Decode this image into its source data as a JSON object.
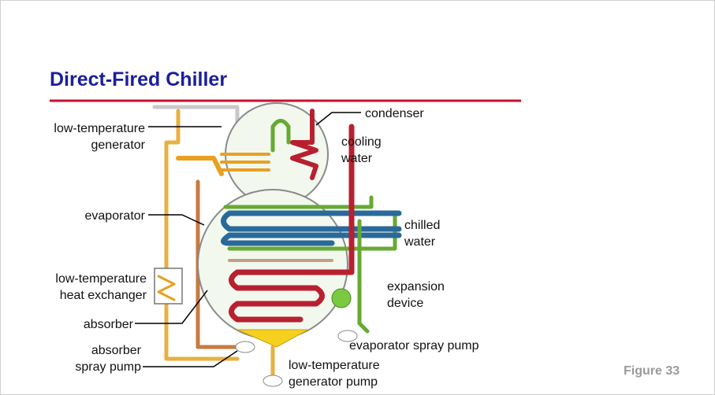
{
  "slide": {
    "title": "Direct-Fired Chiller",
    "figure": "Figure 33",
    "labels": [
      {
        "lines": [
          "low-temperature",
          "generator"
        ]
      },
      {
        "lines": [
          "condenser"
        ]
      },
      {
        "lines": [
          "cooling",
          "water"
        ]
      },
      {
        "lines": [
          "evaporator"
        ]
      },
      {
        "lines": [
          "chilled",
          "water"
        ]
      },
      {
        "lines": [
          "low-temperature",
          "heat exchanger"
        ]
      },
      {
        "lines": [
          "expansion",
          "device"
        ]
      },
      {
        "lines": [
          "absorber"
        ]
      },
      {
        "lines": [
          "absorber",
          "spray pump"
        ]
      },
      {
        "lines": [
          "evaporator spray pump"
        ]
      },
      {
        "lines": [
          "low-temperature",
          "generator pump"
        ]
      }
    ]
  }
}
